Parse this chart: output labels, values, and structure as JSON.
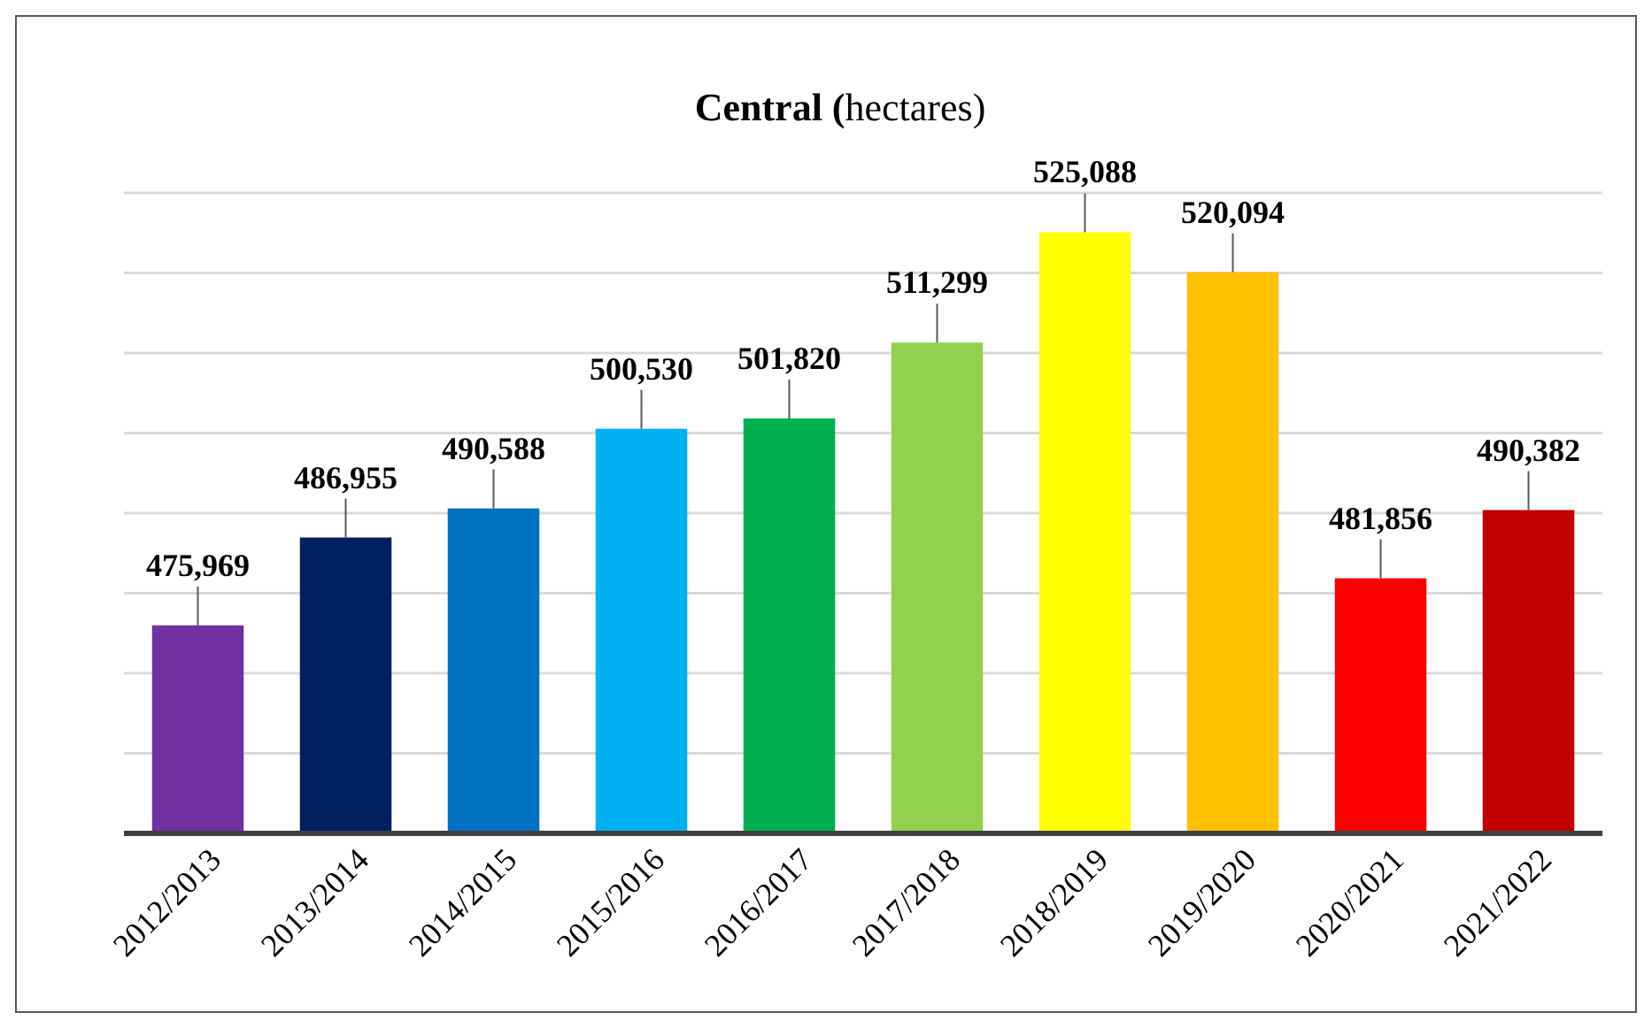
{
  "chart_data": {
    "type": "bar",
    "title": "Central (hectares)",
    "categories": [
      "2012/2013",
      "2013/2014",
      "2014/2015",
      "2015/2016",
      "2016/2017",
      "2017/2018",
      "2018/2019",
      "2019/2020",
      "2020/2021",
      "2021/2022"
    ],
    "values": [
      475969,
      486955,
      490588,
      500530,
      501820,
      511299,
      525088,
      520094,
      481856,
      490382
    ],
    "value_labels": [
      "475,969",
      "486,955",
      "490,588",
      "500,530",
      "501,820",
      "511,299",
      "525,088",
      "520,094",
      "481,856",
      "490,382"
    ],
    "colors": [
      "#7030a0",
      "#002060",
      "#0070c0",
      "#00b0f0",
      "#00b050",
      "#92d050",
      "#ffff00",
      "#ffc000",
      "#ff0000",
      "#c00000"
    ],
    "ylim": [
      450000,
      530000
    ],
    "tick_labels": "x",
    "grid": "y"
  }
}
